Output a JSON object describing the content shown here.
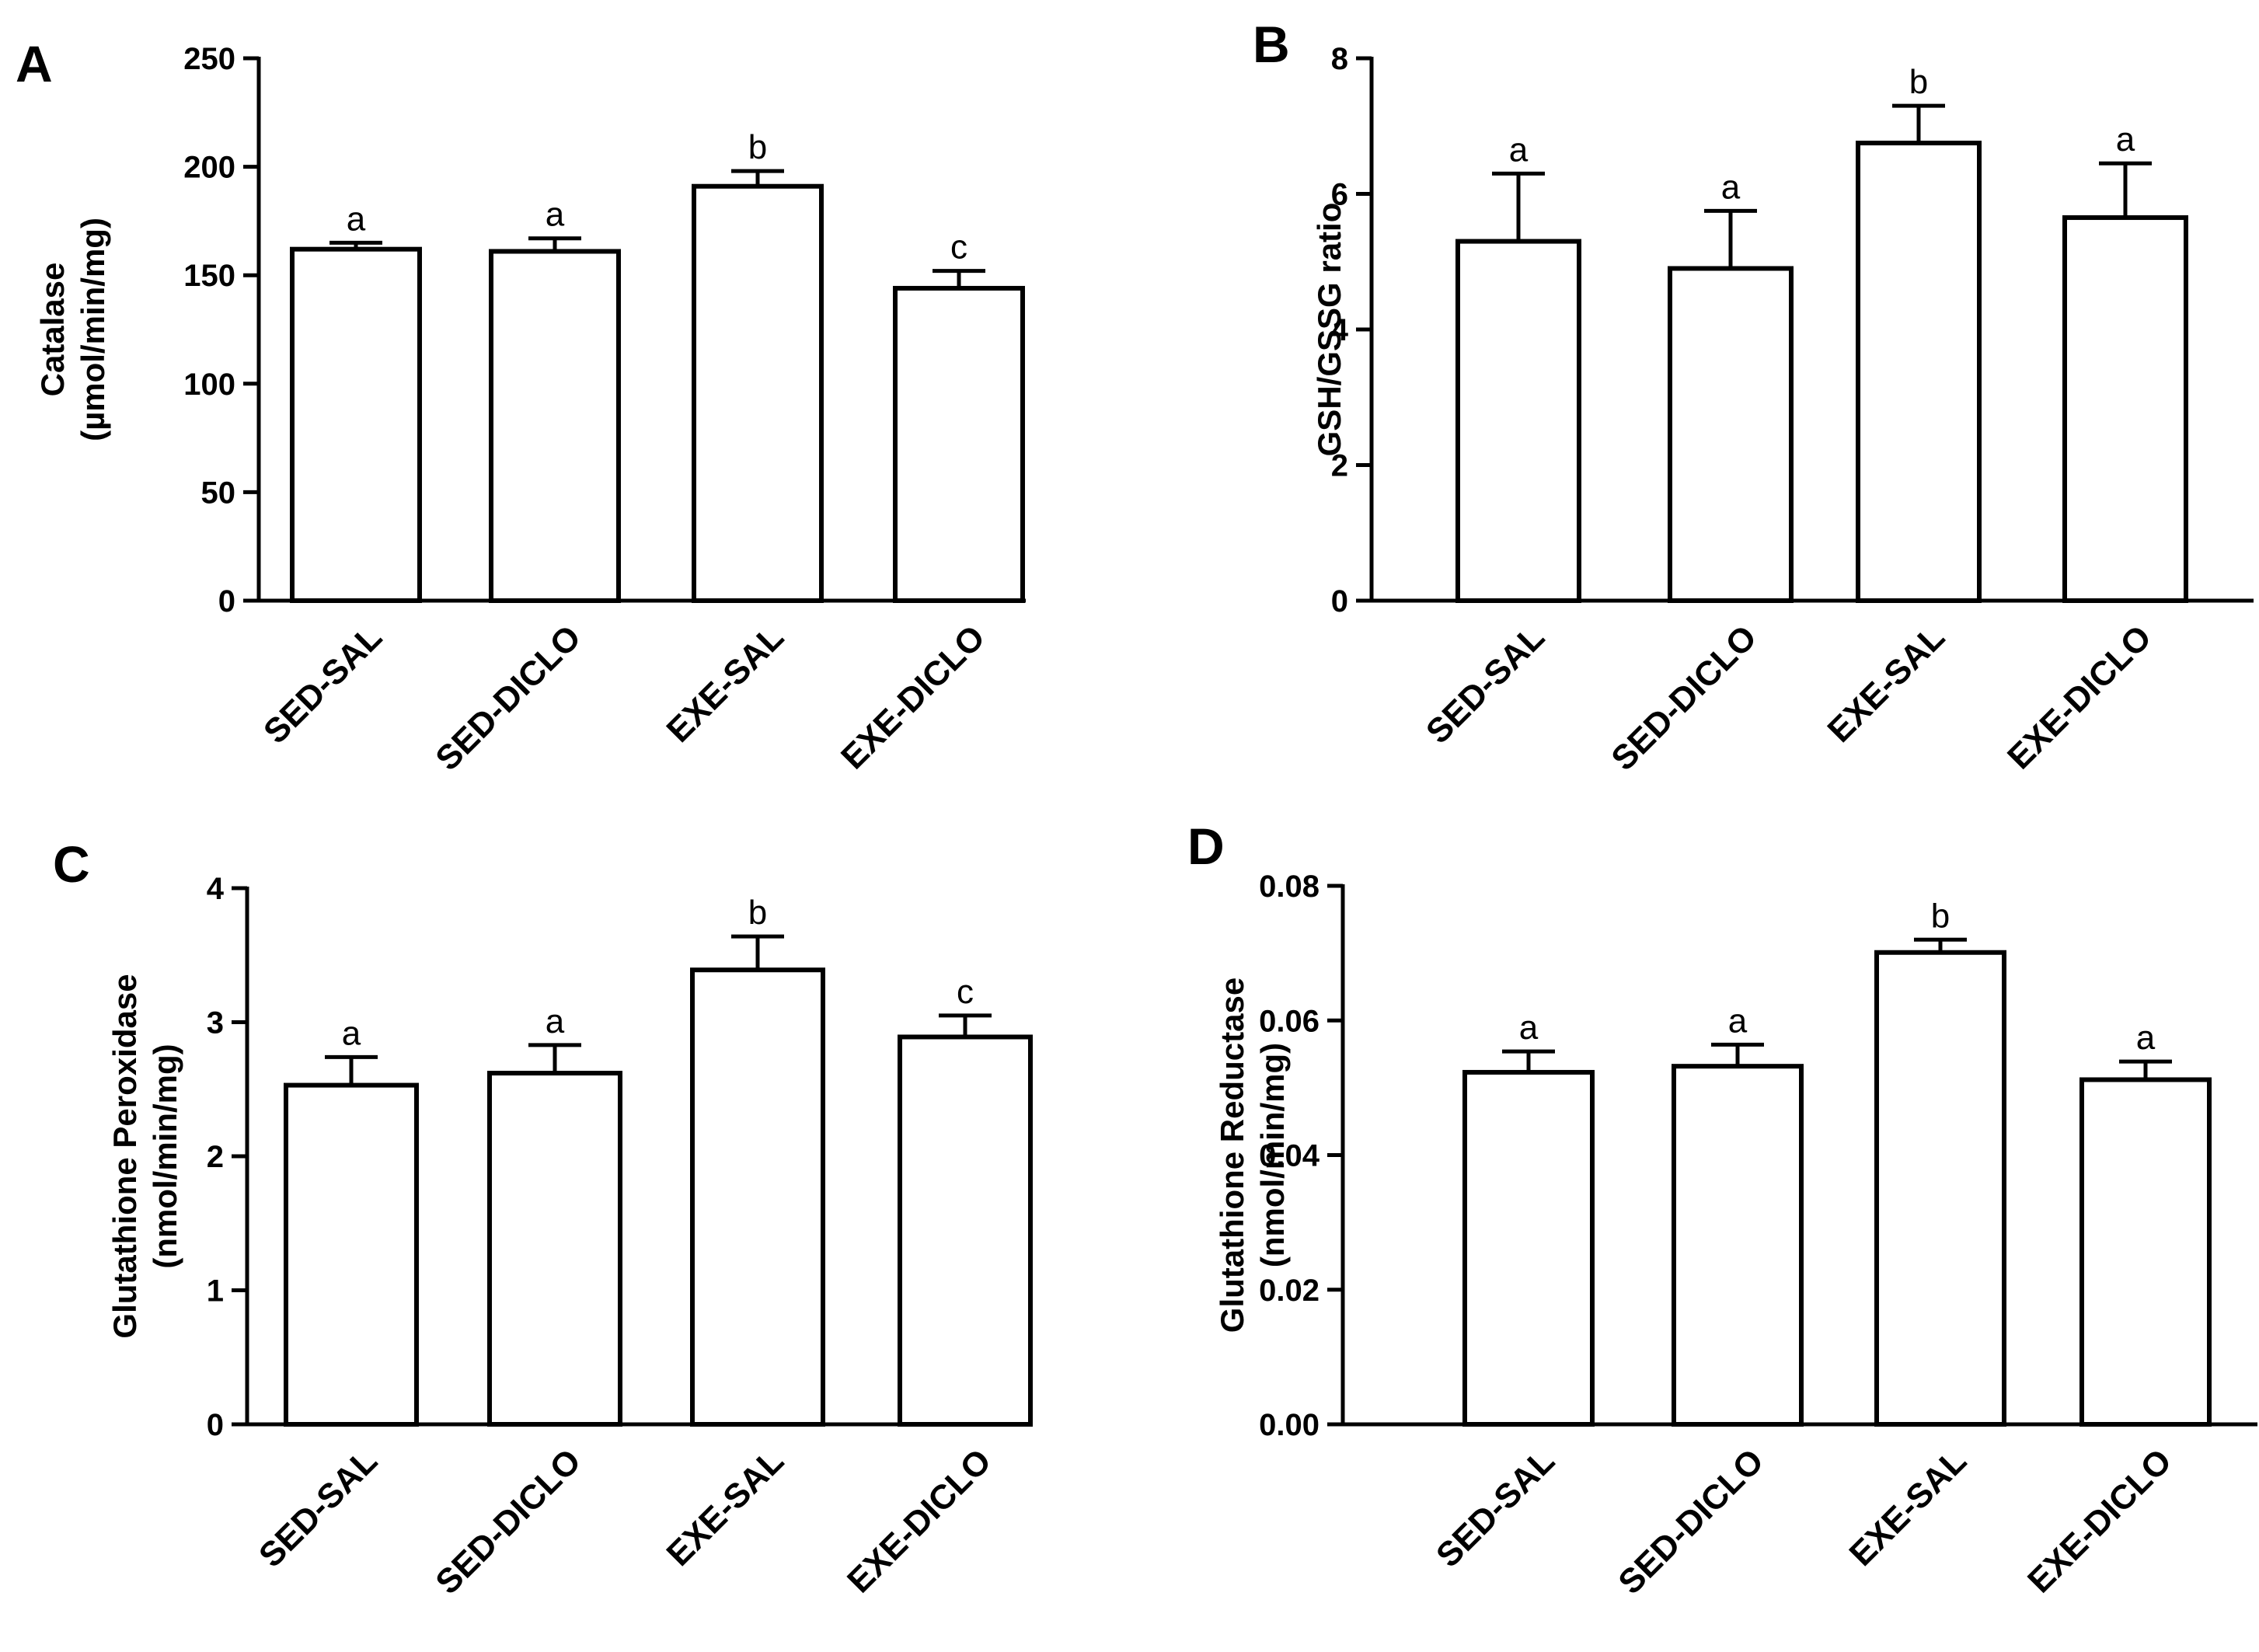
{
  "chart_data": [
    {
      "panel": "A",
      "type": "bar",
      "categories": [
        "SED-SAL",
        "SED-DICLO",
        "EXE-SAL",
        "EXE-DICLO"
      ],
      "values": [
        162,
        161,
        191,
        144
      ],
      "errors": [
        3,
        6,
        7,
        8
      ],
      "significance": [
        "a",
        "a",
        "b",
        "c"
      ],
      "ylabel": [
        "Catalase",
        "(µmol/min/mg)"
      ],
      "ylim": [
        0,
        250
      ],
      "yticks": [
        0,
        50,
        100,
        150,
        200,
        250
      ],
      "ytick_labels": [
        "0",
        "50",
        "100",
        "150",
        "200",
        "250"
      ]
    },
    {
      "panel": "B",
      "type": "bar",
      "categories": [
        "SED-SAL",
        "SED-DICLO",
        "EXE-SAL",
        "EXE-DICLO"
      ],
      "values": [
        5.3,
        4.9,
        6.75,
        5.65
      ],
      "errors": [
        1.0,
        0.85,
        0.55,
        0.8
      ],
      "significance": [
        "a",
        "a",
        "b",
        "a"
      ],
      "ylabel": [
        "GSH/GSSG ratio"
      ],
      "ylim": [
        0,
        8
      ],
      "yticks": [
        0,
        2,
        4,
        6,
        8
      ],
      "ytick_labels": [
        "0",
        "2",
        "4",
        "6",
        "8"
      ]
    },
    {
      "panel": "C",
      "type": "bar",
      "categories": [
        "SED-SAL",
        "SED-DICLO",
        "EXE-SAL",
        "EXE-DICLO"
      ],
      "values": [
        2.53,
        2.62,
        3.39,
        2.89
      ],
      "errors": [
        0.21,
        0.21,
        0.25,
        0.16
      ],
      "significance": [
        "a",
        "a",
        "b",
        "c"
      ],
      "ylabel": [
        "Glutathione Peroxidase",
        "(nmol/min/mg)"
      ],
      "ylim": [
        0,
        4
      ],
      "yticks": [
        0,
        1,
        2,
        3,
        4
      ],
      "ytick_labels": [
        "0",
        "1",
        "2",
        "3",
        "4"
      ]
    },
    {
      "panel": "D",
      "type": "bar",
      "categories": [
        "SED-SAL",
        "SED-DICLO",
        "EXE-SAL",
        "EXE-DICLO"
      ],
      "values": [
        0.0523,
        0.0532,
        0.0701,
        0.0512
      ],
      "errors": [
        0.0031,
        0.0032,
        0.0019,
        0.0027
      ],
      "significance": [
        "a",
        "a",
        "b",
        "a"
      ],
      "ylabel": [
        "Glutathione Reductase",
        "(nmol/min/mg)"
      ],
      "ylim": [
        0,
        0.08
      ],
      "yticks": [
        0,
        0.02,
        0.04,
        0.06,
        0.08
      ],
      "ytick_labels": [
        "0.00",
        "0.02",
        "0.04",
        "0.06",
        "0.08"
      ]
    }
  ],
  "colors": {
    "bar_fill": "#ffffff",
    "ink": "#000000",
    "background": "#ffffff"
  }
}
